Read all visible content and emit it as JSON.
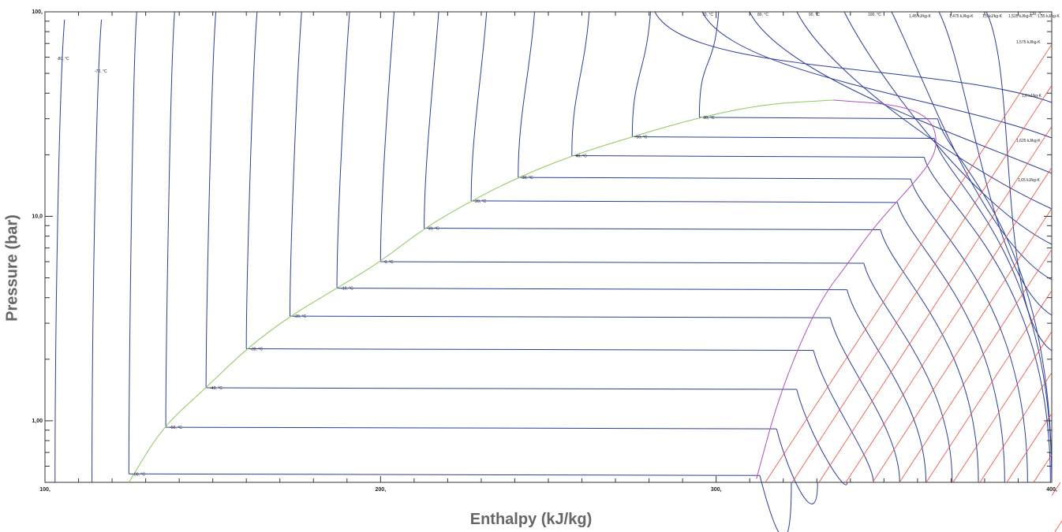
{
  "chart_data": {
    "type": "line",
    "title": "",
    "xlabel": "Enthalpy (kJ/kg)",
    "ylabel": "Pressure (bar)",
    "xlim": [
      100,
      400
    ],
    "ylim": [
      0.5,
      100
    ],
    "yscale": "log",
    "x_ticks": [
      {
        "value": 100,
        "label": "100,"
      },
      {
        "value": 200,
        "label": "200,"
      },
      {
        "value": 300,
        "label": "300,"
      },
      {
        "value": 400,
        "label": "400,"
      }
    ],
    "y_ticks": [
      {
        "value": 1,
        "label": "1,00"
      },
      {
        "value": 10,
        "label": "10,0"
      },
      {
        "value": 100,
        "label": "100,"
      }
    ],
    "colors": {
      "isotherm": "#2b3f9a",
      "isentrope": "#ee4b3b",
      "saturated_liquid": "#8cc95a",
      "saturated_vapor": "#b04fc0"
    },
    "saturation_dome": {
      "liquid": [
        [
          125,
          0.5
        ],
        [
          135,
          0.93
        ],
        [
          148,
          1.45
        ],
        [
          160,
          2.25
        ],
        [
          173,
          3.25
        ],
        [
          187,
          4.45
        ],
        [
          200,
          6.0
        ],
        [
          213,
          8.75
        ],
        [
          227,
          11.9
        ],
        [
          241,
          15.5
        ],
        [
          257,
          19.8
        ],
        [
          275,
          24.5
        ],
        [
          295,
          30.5
        ],
        [
          315,
          35.5
        ],
        [
          335,
          37.0
        ]
      ],
      "vapor": [
        [
          335,
          37.0
        ],
        [
          355,
          35.0
        ],
        [
          364,
          30.0
        ],
        [
          366,
          23.0
        ],
        [
          364,
          18.5
        ],
        [
          358,
          14.0
        ],
        [
          351,
          10.5
        ],
        [
          345,
          8.0
        ],
        [
          339,
          5.8
        ],
        [
          332,
          4.1
        ],
        [
          325,
          2.4
        ],
        [
          318,
          1.2
        ],
        [
          312,
          0.52
        ]
      ]
    },
    "isotherms": [
      {
        "label": "-60, °C",
        "h_liq": 125,
        "h_vap": 313,
        "p_sat": 0.55
      },
      {
        "label": "-50, °C",
        "h_liq": 136,
        "h_vap": 318,
        "p_sat": 0.93
      },
      {
        "label": "-40, °C",
        "h_liq": 148,
        "h_vap": 324,
        "p_sat": 1.45
      },
      {
        "label": "-30, °C",
        "h_liq": 160,
        "h_vap": 329,
        "p_sat": 2.25
      },
      {
        "label": "-20, °C",
        "h_liq": 173,
        "h_vap": 334,
        "p_sat": 3.25
      },
      {
        "label": "-10, °C",
        "h_liq": 187,
        "h_vap": 339,
        "p_sat": 4.45
      },
      {
        "label": "0, °C",
        "h_liq": 200,
        "h_vap": 344,
        "p_sat": 6.0
      },
      {
        "label": "10, °C",
        "h_liq": 213,
        "h_vap": 349,
        "p_sat": 8.75
      },
      {
        "label": "20, °C",
        "h_liq": 227,
        "h_vap": 354,
        "p_sat": 11.9
      },
      {
        "label": "30, °C",
        "h_liq": 241,
        "h_vap": 358,
        "p_sat": 15.5
      },
      {
        "label": "40, °C",
        "h_liq": 257,
        "h_vap": 362,
        "p_sat": 19.8
      },
      {
        "label": "50, °C",
        "h_liq": 275,
        "h_vap": 365,
        "p_sat": 24.5
      },
      {
        "label": "60, °C",
        "h_liq": 295,
        "h_vap": 366,
        "p_sat": 30.5
      }
    ],
    "isotherm_labels_extra": [
      "-80, °C",
      "-70, °C",
      "70, °C",
      "80, °C",
      "90, °C",
      "100, °C",
      "130, °C"
    ],
    "isentrope_labels": [
      "1,45 kJ/kg-K",
      "1,475 kJ/kg-K",
      "1,5 kJ/kg-K",
      "1,525 kJ/kg-K",
      "1,55 kJ/kg-K",
      "1,575 kJ/kg-K",
      "1,6 kJ/kg-K",
      "1,625 kJ/kg-K",
      "1,65 kJ/kg-K"
    ]
  }
}
